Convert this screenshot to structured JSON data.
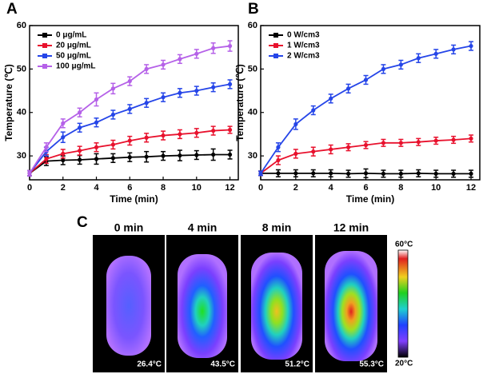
{
  "chart_data": [
    {
      "type": "line",
      "panel": "A",
      "xlabel": "Time (min)",
      "ylabel": "Temperature (℃)",
      "x": [
        0,
        1,
        2,
        3,
        4,
        5,
        6,
        7,
        8,
        9,
        10,
        11,
        12
      ],
      "xlim": [
        0,
        12.5
      ],
      "xticks": [
        0,
        2,
        4,
        6,
        8,
        10,
        12
      ],
      "ylim": [
        24.5,
        60
      ],
      "yticks": [
        30,
        40,
        50,
        60
      ],
      "legend": "upper left",
      "series": [
        {
          "name": "0 μg/mL",
          "color": "#000000",
          "values": [
            26,
            28.8,
            29,
            29.1,
            29.3,
            29.5,
            29.7,
            29.8,
            30,
            30.1,
            30.2,
            30.3,
            30.3
          ],
          "errors": [
            0.6,
            1,
            1,
            1,
            1.2,
            1,
            1,
            1.2,
            1,
            1.2,
            1,
            1.3,
            1
          ]
        },
        {
          "name": "20 μg/mL",
          "color": "#e8112d",
          "values": [
            26,
            29.3,
            30.5,
            31.2,
            32,
            32.6,
            33.5,
            34.2,
            34.7,
            35,
            35.3,
            35.8,
            36
          ],
          "errors": [
            0.6,
            1,
            1,
            1,
            1,
            1,
            1,
            1,
            1,
            1,
            1,
            1,
            0.8
          ]
        },
        {
          "name": "50 μg/mL",
          "color": "#2545e8",
          "values": [
            26,
            31,
            34.3,
            36.5,
            37.7,
            39.5,
            40.8,
            42.2,
            43.5,
            44.5,
            45,
            45.8,
            46.5
          ],
          "errors": [
            0.6,
            1,
            1.2,
            1,
            1,
            1,
            1,
            1,
            1,
            1,
            1,
            1,
            1
          ]
        },
        {
          "name": "100 μg/mL",
          "color": "#b561e8",
          "values": [
            26,
            32,
            37.5,
            40,
            43,
            45.5,
            47.2,
            50,
            51,
            52.3,
            53.5,
            54.8,
            55.3
          ],
          "errors": [
            0.6,
            1,
            1,
            1,
            1.5,
            1.2,
            1,
            1,
            1,
            1,
            1,
            1.2,
            1.2
          ]
        }
      ]
    },
    {
      "type": "line",
      "panel": "B",
      "xlabel": "Time (min)",
      "ylabel": "Temperature (℃)",
      "x": [
        0,
        1,
        2,
        3,
        4,
        5,
        6,
        7,
        8,
        9,
        10,
        11,
        12
      ],
      "xlim": [
        0,
        12.5
      ],
      "xticks": [
        0,
        2,
        4,
        6,
        8,
        10,
        12
      ],
      "ylim": [
        24.5,
        60
      ],
      "yticks": [
        30,
        40,
        50,
        60
      ],
      "legend": "upper left",
      "series": [
        {
          "name": "0 W/cm3",
          "color": "#000000",
          "values": [
            26,
            26,
            26,
            26,
            26,
            25.9,
            26,
            25.9,
            25.9,
            26,
            25.9,
            25.9,
            25.9
          ],
          "errors": [
            0.5,
            0.8,
            0.8,
            0.8,
            0.8,
            0.8,
            1,
            0.8,
            0.8,
            0.8,
            0.8,
            0.8,
            0.8
          ]
        },
        {
          "name": "1 W/cm3",
          "color": "#e8112d",
          "values": [
            26,
            29,
            30.5,
            31,
            31.5,
            32,
            32.5,
            33,
            33,
            33.2,
            33.5,
            33.7,
            34
          ],
          "errors": [
            0.5,
            1,
            1,
            1,
            1,
            0.8,
            0.8,
            0.8,
            0.8,
            0.8,
            0.8,
            0.8,
            0.8
          ]
        },
        {
          "name": "2 W/cm3",
          "color": "#2545e8",
          "values": [
            26,
            32,
            37.3,
            40.5,
            43.2,
            45.5,
            47.5,
            50,
            51,
            52.5,
            53.5,
            54.5,
            55.3
          ],
          "errors": [
            0.5,
            1,
            1.2,
            1,
            1,
            1,
            1,
            1,
            1,
            1,
            1,
            1,
            1
          ]
        }
      ]
    }
  ],
  "panel_c": {
    "label": "C",
    "images": [
      {
        "time": "0 min",
        "temperature": "26.4°C"
      },
      {
        "time": "4 min",
        "temperature": "43.5°C"
      },
      {
        "time": "8 min",
        "temperature": "51.2°C"
      },
      {
        "time": "12 min",
        "temperature": "55.3°C"
      }
    ],
    "colorbar": {
      "max": "60°C",
      "min": "20°C"
    }
  }
}
